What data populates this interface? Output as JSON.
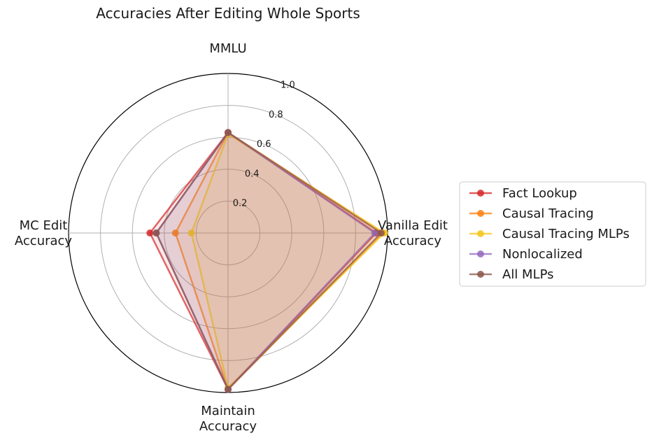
{
  "chart_data": {
    "type": "radar",
    "title": "Accuracies After Editing Whole Sports",
    "axes": [
      {
        "lines": [
          "Vanilla Edit",
          "Accuracy"
        ]
      },
      {
        "lines": [
          "MMLU"
        ]
      },
      {
        "lines": [
          "MC Edit",
          "Accuracy"
        ]
      },
      {
        "lines": [
          "Maintain",
          "Accuracy"
        ]
      }
    ],
    "radial_ticks": [
      0.2,
      0.4,
      0.6,
      0.8,
      1.0
    ],
    "radial_tick_labels": [
      "0.2",
      "0.4",
      "0.6",
      "0.8",
      "1.0"
    ],
    "rlim": [
      0,
      1.0
    ],
    "grid": true,
    "legend_position": "right",
    "series": [
      {
        "name": "Fact Lookup",
        "color": "#d62728",
        "values": [
          0.93,
          0.63,
          0.49,
          0.98
        ]
      },
      {
        "name": "Causal Tracing",
        "color": "#ff7f0e",
        "values": [
          0.97,
          0.63,
          0.33,
          0.98
        ]
      },
      {
        "name": "Causal Tracing MLPs",
        "color": "#f5c518",
        "values": [
          0.98,
          0.62,
          0.23,
          0.97
        ]
      },
      {
        "name": "Nonlocalized",
        "color": "#9467bd",
        "values": [
          0.92,
          0.63,
          0.45,
          0.98
        ]
      },
      {
        "name": "All MLPs",
        "color": "#8c564b",
        "values": [
          0.96,
          0.63,
          0.45,
          0.98
        ]
      }
    ]
  }
}
